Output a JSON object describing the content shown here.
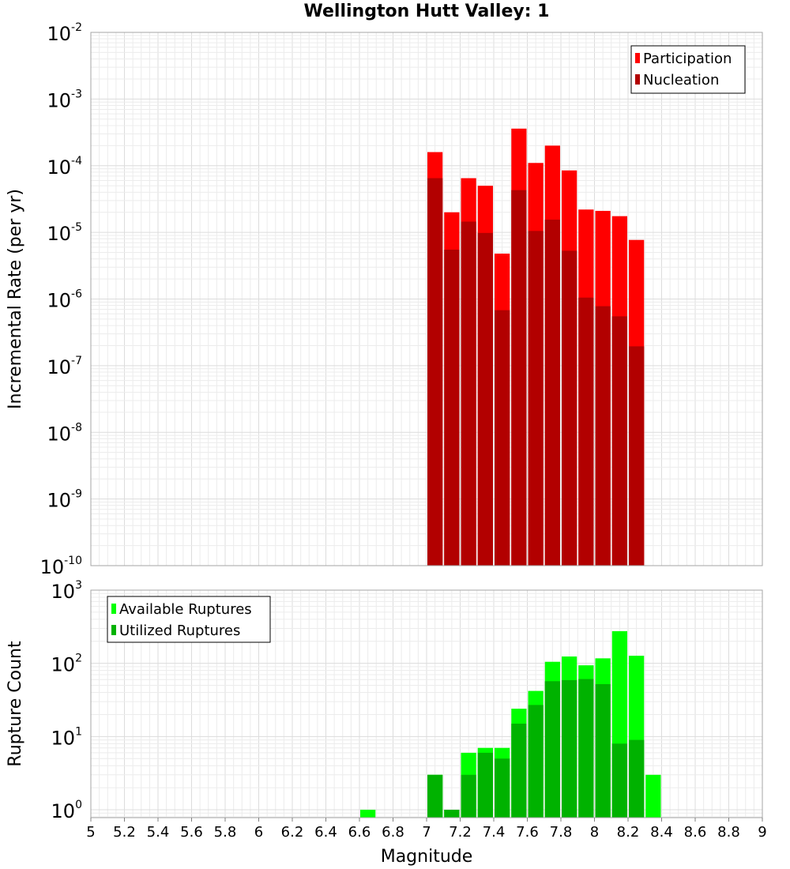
{
  "title": "Wellington Hutt Valley: 1",
  "x_axis": {
    "label": "Magnitude",
    "range": [
      5,
      9
    ],
    "ticks": [
      "5",
      "5.2",
      "5.4",
      "5.6",
      "5.8",
      "6",
      "6.2",
      "6.4",
      "6.6",
      "6.8",
      "7",
      "7.2",
      "7.4",
      "7.6",
      "7.8",
      "8",
      "8.2",
      "8.4",
      "8.6",
      "8.8",
      "9"
    ]
  },
  "chart_data": [
    {
      "type": "bar",
      "title": "Wellington Hutt Valley: 1",
      "xlabel": "Magnitude",
      "ylabel": "Incremental Rate (per yr)",
      "yscale": "log",
      "ylim": [
        1e-10,
        0.01
      ],
      "xlim": [
        5,
        9
      ],
      "bin_width": 0.1,
      "grid": true,
      "legend_position": "top-right",
      "x": [
        7.05,
        7.15,
        7.25,
        7.35,
        7.45,
        7.55,
        7.65,
        7.75,
        7.85,
        7.95,
        8.05,
        8.15,
        8.25
      ],
      "series": [
        {
          "name": "Participation",
          "color": "#ff0000",
          "values": [
            0.00016,
            2e-05,
            6.5e-05,
            5e-05,
            4.8e-06,
            0.00036,
            0.00011,
            0.0002,
            8.5e-05,
            2.2e-05,
            2.1e-05,
            1.75e-05,
            7.7e-06
          ]
        },
        {
          "name": "Nucleation",
          "color": "#b20000",
          "values": [
            6.5e-05,
            5.5e-06,
            1.45e-05,
            9.8e-06,
            6.8e-07,
            4.3e-05,
            1.05e-05,
            1.55e-05,
            5.3e-06,
            1.05e-06,
            7.8e-07,
            5.5e-07,
            1.95e-07
          ]
        }
      ]
    },
    {
      "type": "bar",
      "ylabel": "Rupture Count",
      "xlabel": "Magnitude",
      "yscale": "log",
      "ylim": [
        0.78,
        1000
      ],
      "xlim": [
        5,
        9
      ],
      "bin_width": 0.1,
      "grid": true,
      "legend_position": "top-left",
      "x": [
        6.65,
        7.05,
        7.15,
        7.25,
        7.35,
        7.45,
        7.55,
        7.65,
        7.75,
        7.85,
        7.95,
        8.05,
        8.15,
        8.25,
        8.35
      ],
      "series": [
        {
          "name": "Available Ruptures",
          "color": "#00ff00",
          "values": [
            1,
            3,
            1,
            6,
            7,
            7,
            24,
            42,
            105,
            124,
            94,
            117,
            275,
            127,
            3
          ]
        },
        {
          "name": "Utilized Ruptures",
          "color": "#00b200",
          "values": [
            0,
            3,
            1,
            3,
            6,
            5,
            15,
            27,
            57,
            59,
            61,
            52,
            8,
            9,
            0
          ]
        }
      ]
    }
  ]
}
